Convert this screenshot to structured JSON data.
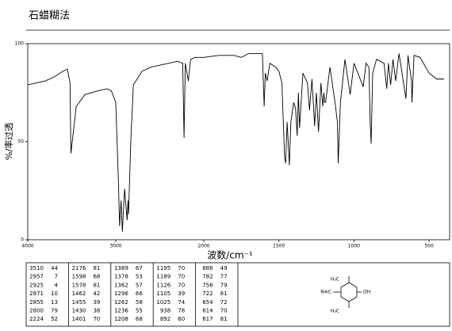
{
  "title": "石蜡糊法",
  "chart_data": {
    "type": "line",
    "xlabel": "波数/cm⁻¹",
    "ylabel": "%/率过透",
    "xlim": [
      4000,
      400
    ],
    "xbreak": 2000,
    "xticks": [
      4000,
      3000,
      2000,
      1500,
      1000,
      500
    ],
    "ylim": [
      0,
      100
    ],
    "yticks": [
      0,
      50,
      100
    ],
    "series": [
      {
        "name": "spectrum",
        "color": "#000000",
        "x": [
          4000,
          3800,
          3700,
          3600,
          3550,
          3520,
          3510,
          3450,
          3350,
          3200,
          3100,
          3050,
          3000,
          2970,
          2957,
          2940,
          2925,
          2900,
          2880,
          2871,
          2860,
          2855,
          2830,
          2800,
          2700,
          2600,
          2400,
          2300,
          2240,
          2224,
          2210,
          2176,
          2150,
          2100,
          2000,
          1900,
          1800,
          1750,
          1700,
          1650,
          1610,
          1598,
          1590,
          1578,
          1560,
          1520,
          1500,
          1480,
          1462,
          1455,
          1445,
          1430,
          1420,
          1401,
          1389,
          1378,
          1370,
          1362,
          1340,
          1310,
          1296,
          1280,
          1262,
          1250,
          1236,
          1220,
          1208,
          1200,
          1195,
          1189,
          1160,
          1126,
          1110,
          1105,
          1090,
          1060,
          1025,
          1000,
          938,
          920,
          900,
          892,
          886,
          875,
          850,
          800,
          782,
          770,
          756,
          740,
          722,
          700,
          654,
          640,
          617,
          614,
          600,
          560,
          500,
          450,
          400
        ],
        "values": [
          79,
          81,
          83,
          86,
          87,
          80,
          44,
          68,
          74,
          76,
          77,
          76,
          70,
          30,
          7,
          20,
          4,
          26,
          15,
          10,
          20,
          13,
          50,
          79,
          86,
          88,
          90,
          91,
          90,
          52,
          90,
          81,
          92,
          93,
          93,
          94,
          94,
          93,
          95,
          95,
          95,
          68,
          85,
          81,
          90,
          88,
          86,
          80,
          42,
          39,
          60,
          38,
          60,
          70,
          67,
          53,
          75,
          57,
          85,
          80,
          66,
          82,
          58,
          75,
          55,
          80,
          68,
          75,
          70,
          70,
          88,
          70,
          60,
          39,
          70,
          92,
          74,
          90,
          78,
          90,
          88,
          60,
          49,
          85,
          92,
          90,
          77,
          90,
          79,
          92,
          81,
          95,
          72,
          94,
          81,
          70,
          94,
          93,
          85,
          82,
          82
        ]
      }
    ]
  },
  "table": {
    "columns": [
      [
        [
          3510,
          44
        ],
        [
          2957,
          7
        ],
        [
          2925,
          4
        ],
        [
          2871,
          10
        ],
        [
          2855,
          13
        ],
        [
          2800,
          79
        ],
        [
          2224,
          52
        ]
      ],
      [
        [
          2176,
          81
        ],
        [
          1598,
          68
        ],
        [
          1578,
          81
        ],
        [
          1462,
          42
        ],
        [
          1455,
          39
        ],
        [
          1430,
          38
        ],
        [
          1401,
          70
        ]
      ],
      [
        [
          1389,
          67
        ],
        [
          1378,
          53
        ],
        [
          1362,
          57
        ],
        [
          1296,
          66
        ],
        [
          1262,
          58
        ],
        [
          1236,
          55
        ],
        [
          1208,
          68
        ]
      ],
      [
        [
          1195,
          70
        ],
        [
          1189,
          70
        ],
        [
          1126,
          70
        ],
        [
          1105,
          39
        ],
        [
          1025,
          74
        ],
        [
          938,
          78
        ],
        [
          892,
          60
        ]
      ],
      [
        [
          886,
          49
        ],
        [
          782,
          77
        ],
        [
          756,
          79
        ],
        [
          722,
          81
        ],
        [
          654,
          72
        ],
        [
          614,
          70
        ],
        [
          617,
          81
        ]
      ]
    ],
    "structure_labels": [
      "H₃C",
      "OH",
      "N≡C",
      "H₃C"
    ]
  }
}
